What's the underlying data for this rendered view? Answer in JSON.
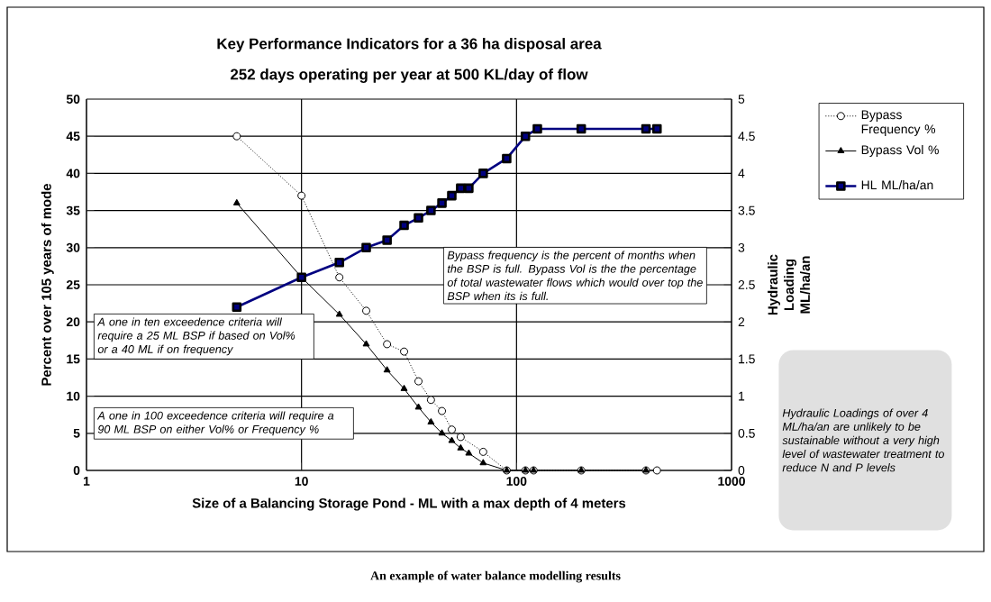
{
  "chart_data": {
    "type": "line",
    "title": "Key Performance Indicators for a 36 ha disposal area",
    "subtitle": "252 days operating per year at 500 KL/day of flow",
    "xlabel": "Size of a Balancing Storage Pond - ML with a max depth of 4 meters",
    "ylabel": "Percent over 105 years of mode",
    "y2label": "Hydraulic Loading ML/ha/an",
    "log": "x",
    "grid": true,
    "legend": "right",
    "xlim": [
      1,
      1000
    ],
    "xticks": [
      1,
      10,
      100,
      1000
    ],
    "ylim": [
      0,
      50
    ],
    "yticks": [
      0,
      5,
      10,
      15,
      20,
      25,
      30,
      35,
      40,
      45,
      50
    ],
    "y2lim": [
      0,
      5
    ],
    "y2ticks": [
      0,
      0.5,
      1,
      1.5,
      2,
      2.5,
      3,
      3.5,
      4,
      4.5,
      5
    ],
    "series": [
      {
        "name": "Bypass Frequency %",
        "color": "#000000",
        "marker": "circle",
        "line_style": "dotted",
        "x": [
          5,
          10,
          15,
          20,
          25,
          30,
          35,
          40,
          45,
          50,
          55,
          70,
          90,
          110,
          120,
          200,
          400,
          450
        ],
        "values": [
          45,
          37,
          26,
          21.5,
          17,
          16,
          12,
          9.5,
          8,
          5.5,
          4.5,
          2.5,
          0,
          0,
          0,
          0,
          0,
          0
        ]
      },
      {
        "name": "Bypass Vol %",
        "color": "#000000",
        "marker": "triangle",
        "line_style": "solid",
        "x": [
          5,
          10,
          15,
          20,
          25,
          30,
          35,
          40,
          45,
          50,
          55,
          60,
          70,
          90,
          110,
          120,
          200,
          400
        ],
        "values": [
          36,
          26,
          21,
          17,
          13.5,
          11,
          8.5,
          6.5,
          5,
          4,
          3,
          2.3,
          1,
          0,
          0,
          0,
          0,
          0
        ]
      },
      {
        "name": "HL ML/ha/an",
        "color": "#000080",
        "marker": "square",
        "line_style": "solid",
        "axis": "y2",
        "x": [
          5,
          10,
          15,
          20,
          25,
          30,
          35,
          40,
          45,
          50,
          55,
          60,
          70,
          90,
          110,
          125,
          200,
          400,
          450
        ],
        "values": [
          2.2,
          2.6,
          2.8,
          3.0,
          3.1,
          3.3,
          3.4,
          3.5,
          3.6,
          3.7,
          3.8,
          3.8,
          4.0,
          4.2,
          4.5,
          4.6,
          4.6,
          4.6,
          4.6
        ]
      }
    ],
    "annotations": [
      "A one in ten exceedence criteria will require a 25 ML BSP if based on Vol% or a 40 ML if on frequency",
      "A one in 100 exceedence criteria will require a 90 ML BSP on either Vol% or Frequency %",
      "Bypass frequency is the percent of months when the BSP is full. Bypass Vol is the the percentage of total wastewater flows which would over top the BSP when its is full.",
      "Hydraulic Loadings of over 4 ML/ha/an are unlikely to be sustainable without a very high level of wastewater treatment to reduce N and P levels",
      "An example of water balance modelling results"
    ]
  }
}
